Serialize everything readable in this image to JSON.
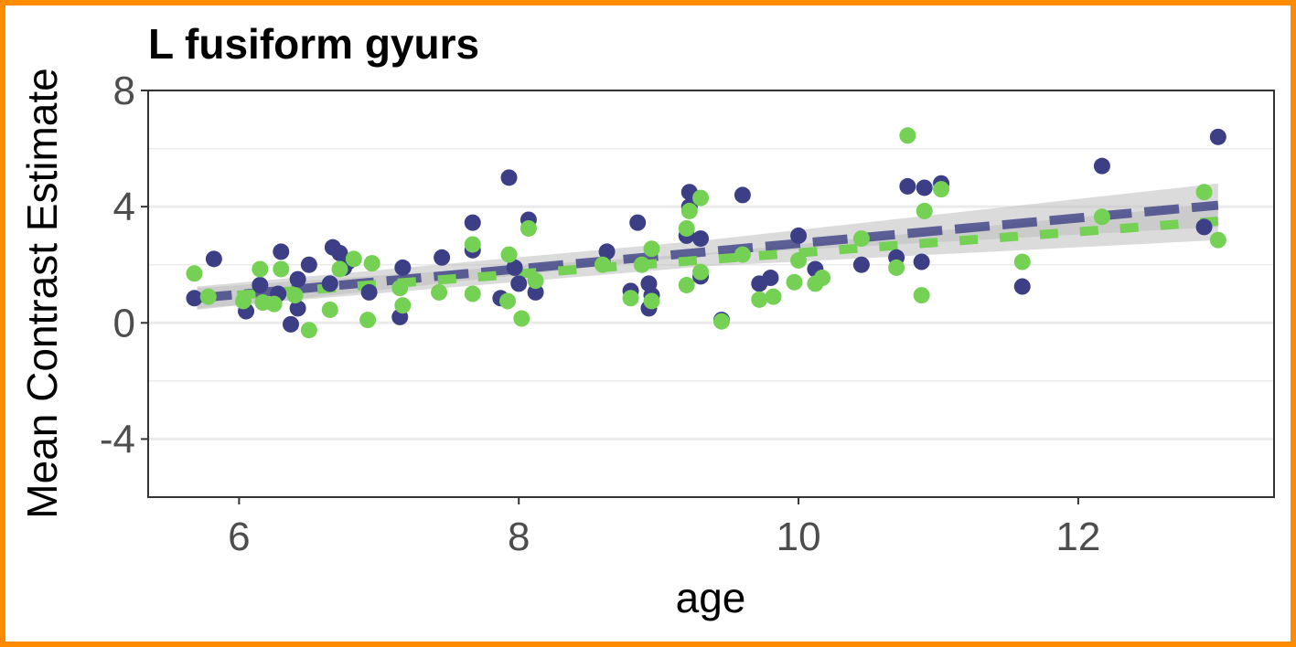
{
  "chart_data": {
    "type": "scatter",
    "title": "L fusiform gyurs",
    "xlabel": "age",
    "ylabel": "Mean Contrast Estimate",
    "xlim": [
      5.35,
      13.4
    ],
    "ylim": [
      -6,
      8
    ],
    "xticks": [
      6,
      8,
      10,
      12
    ],
    "yticks": [
      -4,
      0,
      4,
      8
    ],
    "ytick_labels": [
      "-4",
      "0",
      "4",
      "8"
    ],
    "grid": "horizontal",
    "legend": "none",
    "colors": {
      "series_a": "#3c3f85",
      "series_b": "#74d154",
      "band": "#bdbdbd",
      "frame": "#ff8c00"
    },
    "series": [
      {
        "points": [
          [
            5.68,
            0.85
          ],
          [
            5.82,
            2.2
          ],
          [
            6.05,
            0.4
          ],
          [
            6.15,
            1.3
          ],
          [
            6.28,
            1.0
          ],
          [
            6.3,
            2.45
          ],
          [
            6.37,
            -0.05
          ],
          [
            6.42,
            0.5
          ],
          [
            6.42,
            1.5
          ],
          [
            6.5,
            2.0
          ],
          [
            6.65,
            1.35
          ],
          [
            6.67,
            2.6
          ],
          [
            6.72,
            2.4
          ],
          [
            6.75,
            1.9
          ],
          [
            6.78,
            2.1
          ],
          [
            6.93,
            1.05
          ],
          [
            7.15,
            0.2
          ],
          [
            7.17,
            1.9
          ],
          [
            7.45,
            2.25
          ],
          [
            7.67,
            3.45
          ],
          [
            7.67,
            2.5
          ],
          [
            7.87,
            0.85
          ],
          [
            7.93,
            5.0
          ],
          [
            7.97,
            1.9
          ],
          [
            8.0,
            1.35
          ],
          [
            8.07,
            3.55
          ],
          [
            8.12,
            1.05
          ],
          [
            8.63,
            2.45
          ],
          [
            8.8,
            1.1
          ],
          [
            8.85,
            3.45
          ],
          [
            8.93,
            1.35
          ],
          [
            8.93,
            0.5
          ],
          [
            8.95,
            0.95
          ],
          [
            9.2,
            3.0
          ],
          [
            9.22,
            4.5
          ],
          [
            9.22,
            4.0
          ],
          [
            9.3,
            2.9
          ],
          [
            9.3,
            1.6
          ],
          [
            9.45,
            0.1
          ],
          [
            9.6,
            4.4
          ],
          [
            9.72,
            1.35
          ],
          [
            9.8,
            1.55
          ],
          [
            10.0,
            3.0
          ],
          [
            10.12,
            1.85
          ],
          [
            10.45,
            2.0
          ],
          [
            10.7,
            2.25
          ],
          [
            10.78,
            4.7
          ],
          [
            10.88,
            2.1
          ],
          [
            10.9,
            4.65
          ],
          [
            11.02,
            4.8
          ],
          [
            11.6,
            1.25
          ],
          [
            12.17,
            5.4
          ],
          [
            12.9,
            3.3
          ],
          [
            13.0,
            6.4
          ]
        ],
        "fit": [
          [
            5.7,
            0.85
          ],
          [
            13.0,
            4.05
          ]
        ],
        "band": [
          [
            5.7,
            0.45,
            1.25
          ],
          [
            9.35,
            2.35,
            2.85
          ],
          [
            13.0,
            3.3,
            4.8
          ]
        ]
      },
      {
        "points": [
          [
            5.68,
            1.7
          ],
          [
            5.78,
            0.9
          ],
          [
            6.03,
            0.75
          ],
          [
            6.15,
            1.85
          ],
          [
            6.17,
            0.7
          ],
          [
            6.25,
            0.65
          ],
          [
            6.3,
            1.85
          ],
          [
            6.4,
            0.95
          ],
          [
            6.5,
            -0.25
          ],
          [
            6.65,
            0.45
          ],
          [
            6.72,
            1.85
          ],
          [
            6.82,
            2.2
          ],
          [
            6.92,
            0.1
          ],
          [
            6.95,
            2.05
          ],
          [
            7.15,
            1.2
          ],
          [
            7.17,
            0.6
          ],
          [
            7.43,
            1.05
          ],
          [
            7.67,
            2.7
          ],
          [
            7.67,
            1.0
          ],
          [
            7.92,
            0.75
          ],
          [
            7.93,
            2.35
          ],
          [
            8.02,
            0.15
          ],
          [
            8.07,
            3.25
          ],
          [
            8.12,
            1.45
          ],
          [
            8.6,
            2.0
          ],
          [
            8.8,
            0.85
          ],
          [
            8.88,
            2.0
          ],
          [
            8.95,
            2.55
          ],
          [
            8.95,
            0.75
          ],
          [
            9.2,
            3.25
          ],
          [
            9.2,
            1.3
          ],
          [
            9.22,
            3.85
          ],
          [
            9.3,
            4.3
          ],
          [
            9.3,
            1.75
          ],
          [
            9.45,
            0.05
          ],
          [
            9.6,
            2.35
          ],
          [
            9.72,
            0.8
          ],
          [
            9.82,
            0.9
          ],
          [
            9.97,
            1.4
          ],
          [
            10.0,
            2.15
          ],
          [
            10.12,
            1.35
          ],
          [
            10.17,
            1.55
          ],
          [
            10.45,
            2.9
          ],
          [
            10.7,
            1.9
          ],
          [
            10.78,
            6.45
          ],
          [
            10.88,
            0.95
          ],
          [
            10.9,
            3.85
          ],
          [
            11.02,
            4.6
          ],
          [
            11.6,
            2.1
          ],
          [
            12.17,
            3.65
          ],
          [
            12.9,
            4.5
          ],
          [
            13.0,
            2.85
          ]
        ],
        "fit": [
          [
            5.7,
            0.85
          ],
          [
            13.0,
            3.5
          ]
        ],
        "band": [
          [
            5.7,
            0.5,
            1.2
          ],
          [
            9.35,
            1.95,
            2.4
          ],
          [
            13.0,
            2.85,
            4.1
          ]
        ]
      }
    ]
  }
}
